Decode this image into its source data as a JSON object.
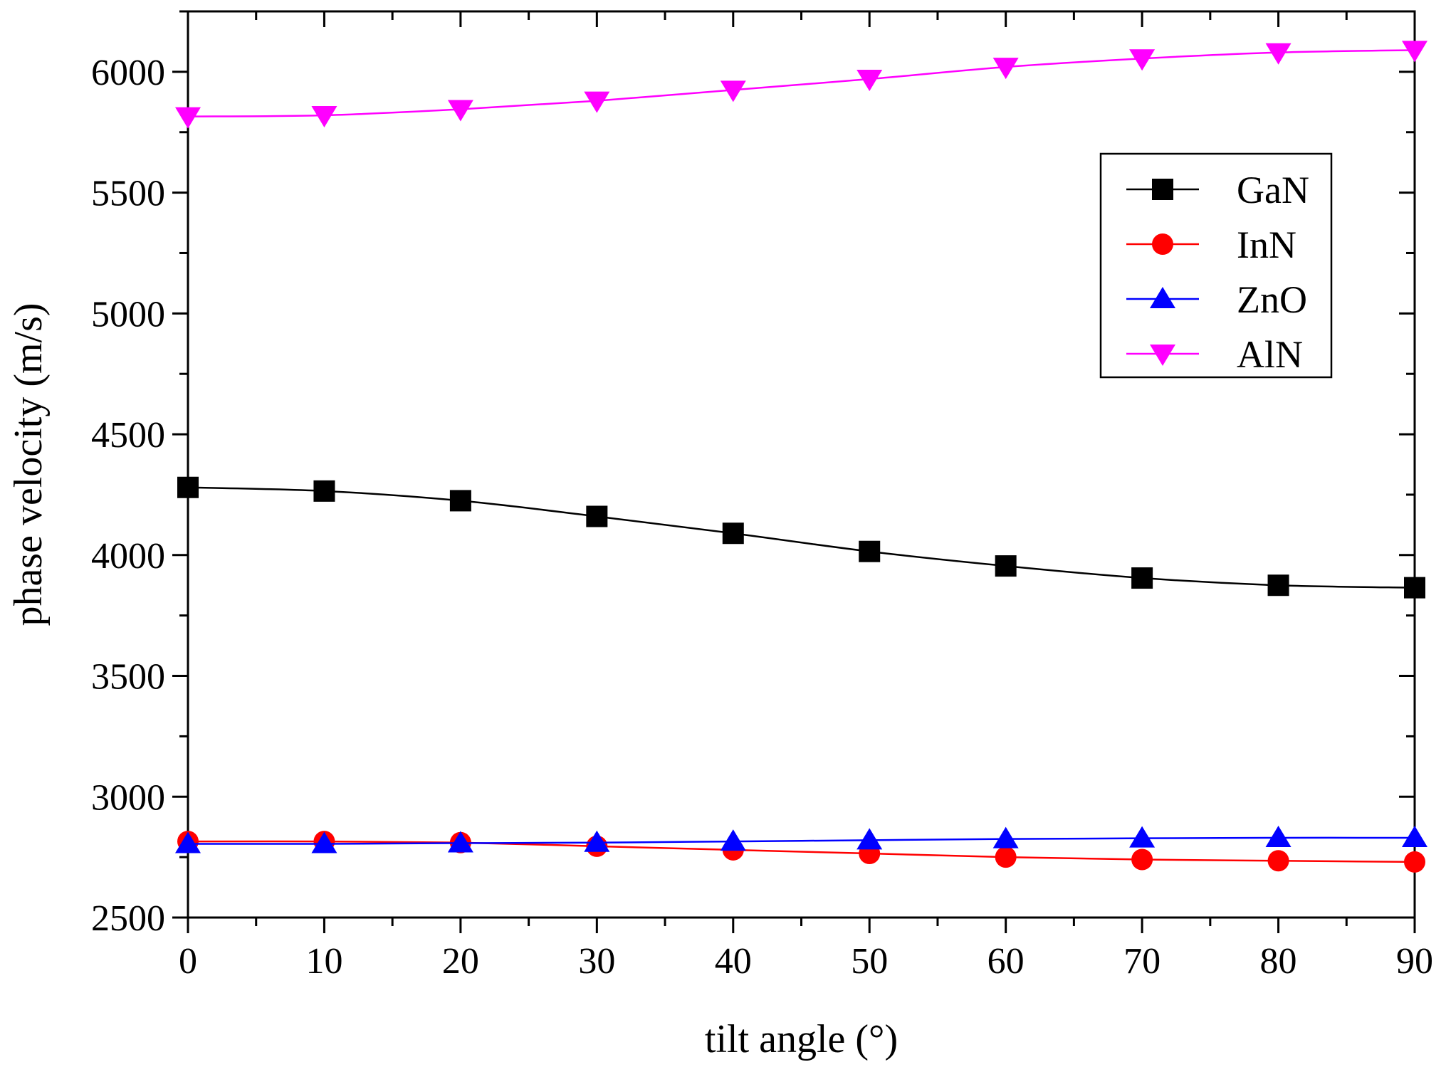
{
  "chart_data": {
    "type": "line",
    "title": "",
    "xlabel": "tilt angle (°)",
    "ylabel": "phase velocity (m/s)",
    "xlim": [
      0,
      90
    ],
    "ylim": [
      2500,
      6250
    ],
    "xticks": [
      0,
      10,
      20,
      30,
      40,
      50,
      60,
      70,
      80,
      90
    ],
    "yticks": [
      2500,
      3000,
      3500,
      4000,
      4500,
      5000,
      5500,
      6000
    ],
    "x": [
      0,
      10,
      20,
      30,
      40,
      50,
      60,
      70,
      80,
      90
    ],
    "grid": false,
    "legend_position": "top-right",
    "series": [
      {
        "name": "GaN",
        "marker": "square",
        "color": "#000000",
        "values": [
          4280,
          4265,
          4225,
          4160,
          4090,
          4015,
          3955,
          3905,
          3875,
          3865
        ]
      },
      {
        "name": "InN",
        "marker": "circle",
        "color": "#ff0000",
        "values": [
          2815,
          2815,
          2810,
          2795,
          2780,
          2765,
          2750,
          2740,
          2735,
          2730
        ]
      },
      {
        "name": "ZnO",
        "marker": "triangle-up",
        "color": "#0000ff",
        "values": [
          2805,
          2805,
          2808,
          2810,
          2815,
          2820,
          2825,
          2828,
          2830,
          2830
        ]
      },
      {
        "name": "AlN",
        "marker": "triangle-down",
        "color": "#ff00ff",
        "values": [
          5815,
          5820,
          5845,
          5880,
          5925,
          5970,
          6020,
          6055,
          6080,
          6090
        ]
      }
    ]
  }
}
